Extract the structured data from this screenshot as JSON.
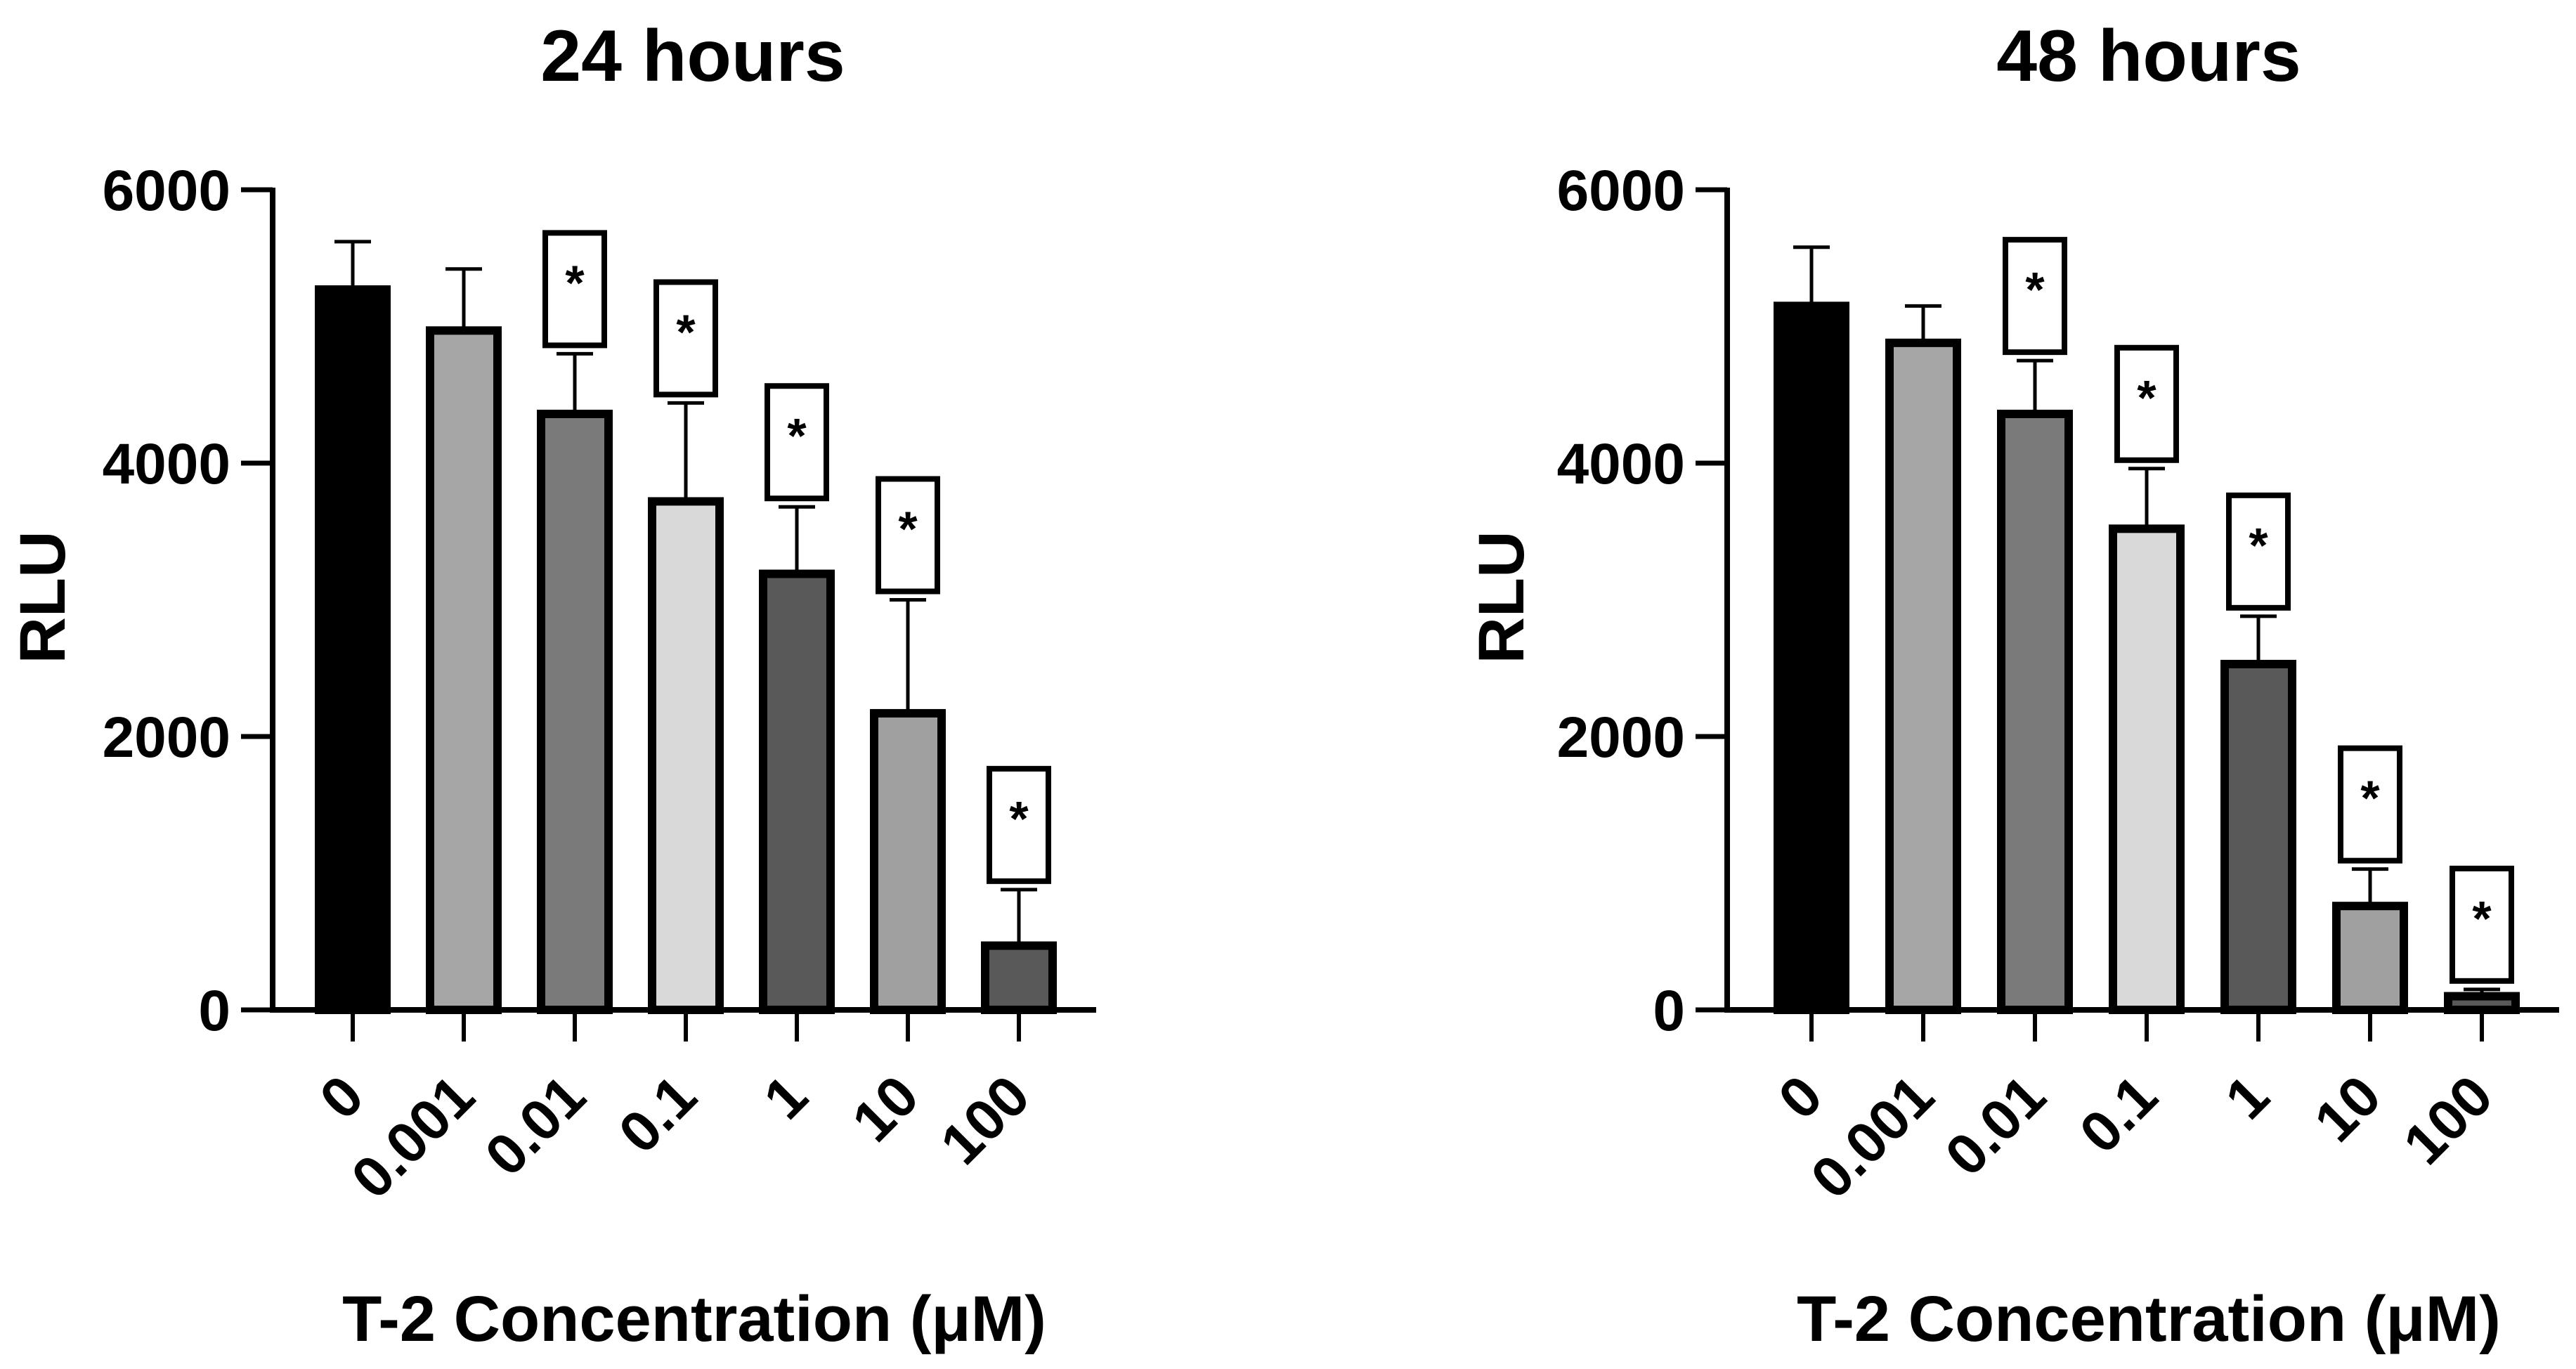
{
  "chart_data": [
    {
      "type": "bar",
      "title": "24 hours",
      "xlabel": "T-2 Concentration (μM)",
      "ylabel": "RLU",
      "ylim": [
        0,
        6000
      ],
      "yticks": [
        "0",
        "2000",
        "4000",
        "6000"
      ],
      "categories": [
        "0",
        "0.001",
        "0.01",
        "0.1",
        "1",
        "10",
        "100"
      ],
      "values": [
        5270,
        4970,
        4360,
        3720,
        3190,
        2170,
        470
      ],
      "error_upper": [
        5620,
        5420,
        4800,
        4440,
        3680,
        3000,
        880
      ],
      "bar_colors": [
        "#000000",
        "#a6a6a6",
        "#7a7a7a",
        "#d9d9d9",
        "#595959",
        "#a0a0a0",
        "#595959"
      ],
      "significance_marker": "*",
      "significant": [
        false,
        false,
        true,
        true,
        true,
        true,
        true
      ]
    },
    {
      "type": "bar",
      "title": "48 hours",
      "xlabel": "T-2 Concentration (μM)",
      "ylabel": "RLU",
      "ylim": [
        0,
        6000
      ],
      "yticks": [
        "0",
        "2000",
        "4000",
        "6000"
      ],
      "categories": [
        "0",
        "0.001",
        "0.01",
        "0.1",
        "1",
        "10",
        "100"
      ],
      "values": [
        5150,
        4880,
        4360,
        3520,
        2530,
        760,
        100
      ],
      "error_upper": [
        5580,
        5150,
        4750,
        3960,
        2880,
        1030,
        150
      ],
      "bar_colors": [
        "#000000",
        "#a6a6a6",
        "#7a7a7a",
        "#d9d9d9",
        "#595959",
        "#a0a0a0",
        "#595959"
      ],
      "significance_marker": "*",
      "significant": [
        false,
        false,
        true,
        true,
        true,
        true,
        true
      ]
    }
  ]
}
